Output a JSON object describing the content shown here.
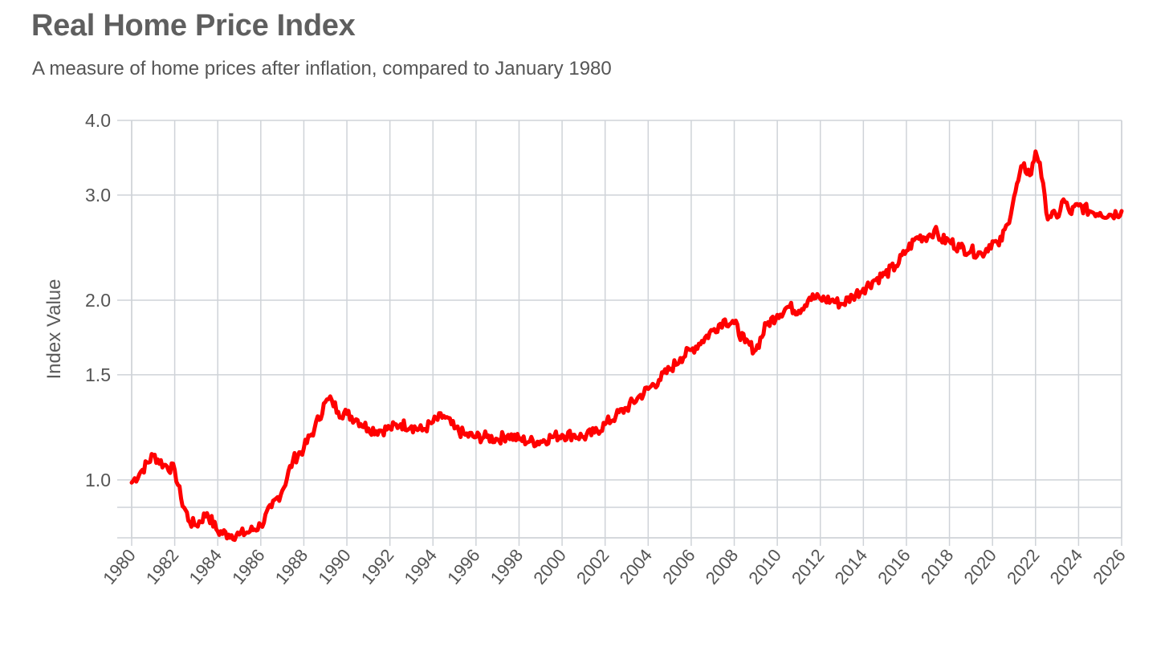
{
  "chart_data": {
    "type": "line",
    "title": "Real Home Price Index",
    "subtitle": "A measure of home prices after inflation, compared to January 1980",
    "ylabel": "Index Value",
    "xlabel": "",
    "y_scale": "log",
    "ylim": [
      0.8,
      4.0
    ],
    "xlim": [
      1980,
      2026
    ],
    "y_ticks": [
      {
        "value": 1.0,
        "label": "1.0"
      },
      {
        "value": 1.5,
        "label": "1.5"
      },
      {
        "value": 2.0,
        "label": "2.0"
      },
      {
        "value": 3.0,
        "label": "3.0"
      },
      {
        "value": 4.0,
        "label": "4.0"
      }
    ],
    "y_minor_gridlines": [
      0.8,
      0.9
    ],
    "x_ticks": [
      "1980",
      "1982",
      "1984",
      "1986",
      "1988",
      "1990",
      "1992",
      "1994",
      "1996",
      "1998",
      "2000",
      "2002",
      "2004",
      "2006",
      "2008",
      "2010",
      "2012",
      "2014",
      "2016",
      "2018",
      "2020",
      "2022",
      "2024",
      "2026"
    ],
    "grid": true,
    "legend": "none",
    "series_color": "#ff0000",
    "x": [
      1980.0,
      1980.5,
      1981.0,
      1981.5,
      1982.0,
      1982.3,
      1982.7,
      1983.0,
      1983.5,
      1984.0,
      1984.5,
      1985.0,
      1985.5,
      1986.0,
      1986.5,
      1987.0,
      1987.5,
      1988.0,
      1988.5,
      1989.0,
      1989.3,
      1989.6,
      1990.0,
      1990.5,
      1991.0,
      1991.5,
      1992.0,
      1992.5,
      1993.0,
      1993.5,
      1994.0,
      1994.5,
      1995.0,
      1995.5,
      1996.0,
      1996.5,
      1997.0,
      1997.5,
      1998.0,
      1998.5,
      1999.0,
      1999.5,
      2000.0,
      2000.5,
      2001.0,
      2001.5,
      2002.0,
      2002.5,
      2003.0,
      2003.5,
      2004.0,
      2004.5,
      2005.0,
      2005.5,
      2006.0,
      2006.5,
      2007.0,
      2007.5,
      2008.0,
      2008.5,
      2009.0,
      2009.5,
      2010.0,
      2010.5,
      2011.0,
      2011.5,
      2012.0,
      2012.5,
      2013.0,
      2013.5,
      2014.0,
      2014.5,
      2015.0,
      2015.5,
      2016.0,
      2016.5,
      2017.0,
      2017.3,
      2017.6,
      2018.0,
      2018.5,
      2019.0,
      2019.5,
      2020.0,
      2020.3,
      2020.7,
      2021.0,
      2021.4,
      2021.8,
      2022.0,
      2022.2,
      2022.5,
      2023.0,
      2023.3,
      2023.6,
      2024.0,
      2024.5,
      2025.0,
      2025.5,
      2026.0
    ],
    "series": [
      {
        "values": [
          0.99,
          1.04,
          1.1,
          1.06,
          1.04,
          0.93,
          0.85,
          0.84,
          0.88,
          0.82,
          0.81,
          0.81,
          0.82,
          0.84,
          0.9,
          0.96,
          1.08,
          1.13,
          1.22,
          1.35,
          1.36,
          1.3,
          1.29,
          1.26,
          1.22,
          1.21,
          1.22,
          1.24,
          1.23,
          1.21,
          1.25,
          1.28,
          1.22,
          1.19,
          1.18,
          1.18,
          1.17,
          1.19,
          1.17,
          1.16,
          1.16,
          1.18,
          1.19,
          1.19,
          1.18,
          1.2,
          1.24,
          1.28,
          1.32,
          1.37,
          1.42,
          1.47,
          1.53,
          1.6,
          1.65,
          1.71,
          1.78,
          1.85,
          1.83,
          1.7,
          1.65,
          1.82,
          1.89,
          1.95,
          1.92,
          2.02,
          2.01,
          2.0,
          1.97,
          2.03,
          2.09,
          2.16,
          2.21,
          2.28,
          2.42,
          2.55,
          2.56,
          2.62,
          2.53,
          2.51,
          2.45,
          2.42,
          2.39,
          2.51,
          2.47,
          2.68,
          2.98,
          3.35,
          3.25,
          3.55,
          3.4,
          2.8,
          2.75,
          2.95,
          2.8,
          2.88,
          2.82,
          2.8,
          2.78,
          2.82
        ]
      }
    ]
  }
}
